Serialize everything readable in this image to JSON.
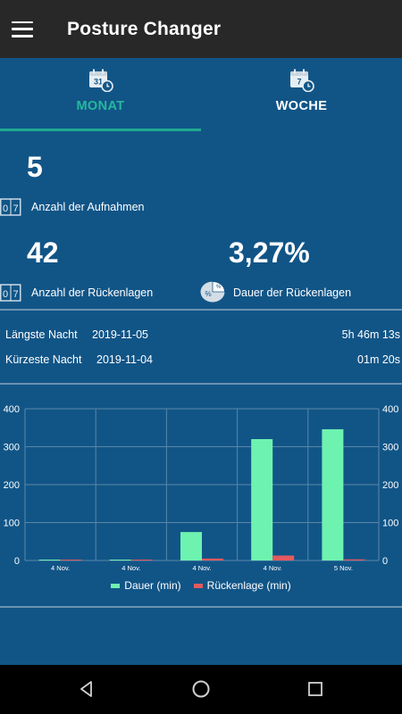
{
  "app": {
    "title": "Posture Changer"
  },
  "tabs": [
    {
      "label": "MONAT",
      "icon": "calendar-month-icon",
      "icon_day": "31",
      "active": true
    },
    {
      "label": "WOCHE",
      "icon": "calendar-week-icon",
      "icon_day": "7",
      "active": false
    }
  ],
  "stats": {
    "recordings": {
      "value": "5",
      "label": "Anzahl der Aufnahmen"
    },
    "back_positions": {
      "value": "42",
      "label": "Anzahl der Rückenlagen"
    },
    "back_duration": {
      "value": "3,27%",
      "label": "Dauer der Rückenlagen"
    },
    "counter_icon_text": "0 7",
    "pie_icon_text": "%"
  },
  "nights": {
    "longest": {
      "label": "Längste Nacht",
      "date": "2019-11-05",
      "duration": "5h 46m 13s"
    },
    "shortest": {
      "label": "Kürzeste Nacht",
      "date": "2019-11-04",
      "duration": "01m 20s"
    }
  },
  "colors": {
    "background": "#115587",
    "appbar": "#282828",
    "accent": "#1fa88e",
    "series_dauer": "#6ef2b0",
    "series_rueckenlage": "#e45a5e"
  },
  "chart_data": {
    "type": "bar",
    "categories": [
      "4 Nov.",
      "4 Nov.",
      "4 Nov.",
      "4 Nov.",
      "5 Nov."
    ],
    "series": [
      {
        "name": "Dauer (min)",
        "color": "#6ef2b0",
        "values": [
          1,
          1,
          75,
          320,
          346
        ]
      },
      {
        "name": "Rückenlage (min)",
        "color": "#e45a5e",
        "values": [
          0,
          0,
          5,
          13,
          3
        ]
      }
    ],
    "ylim": [
      0,
      400
    ],
    "y_ticks": [
      0,
      100,
      200,
      300,
      400
    ],
    "grid": true,
    "legend_position": "bottom-center",
    "dual_y_axis": true
  },
  "navbar": {
    "buttons": [
      "back",
      "home",
      "recents"
    ]
  }
}
